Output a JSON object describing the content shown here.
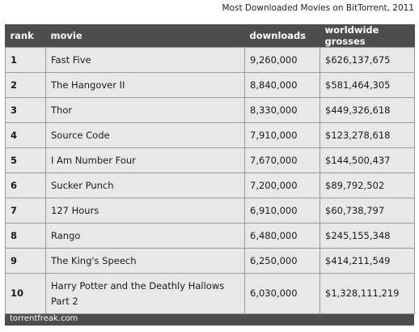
{
  "chart_data": {
    "type": "table",
    "title": "Most Downloaded Movies on BitTorrent, 2011",
    "columns": [
      "rank",
      "movie",
      "downloads",
      "worldwide grosses"
    ],
    "rows": [
      {
        "rank": "1",
        "movie": "Fast Five",
        "downloads": "9,260,000",
        "grosses": "$626,137,675"
      },
      {
        "rank": "2",
        "movie": "The Hangover II",
        "downloads": "8,840,000",
        "grosses": "$581,464,305"
      },
      {
        "rank": "3",
        "movie": "Thor",
        "downloads": "8,330,000",
        "grosses": "$449,326,618"
      },
      {
        "rank": "4",
        "movie": "Source Code",
        "downloads": "7,910,000",
        "grosses": "$123,278,618"
      },
      {
        "rank": "5",
        "movie": "I Am Number Four",
        "downloads": "7,670,000",
        "grosses": "$144,500,437"
      },
      {
        "rank": "6",
        "movie": "Sucker Punch",
        "downloads": "7,200,000",
        "grosses": "$89,792,502"
      },
      {
        "rank": "7",
        "movie": "127 Hours",
        "downloads": "6,910,000",
        "grosses": "$60,738,797"
      },
      {
        "rank": "8",
        "movie": "Rango",
        "downloads": "6,480,000",
        "grosses": "$245,155,348"
      },
      {
        "rank": "9",
        "movie": "The King's Speech",
        "downloads": "6,250,000",
        "grosses": "$414,211,549"
      },
      {
        "rank": "10",
        "movie": "Harry Potter and the Deathly Hallows Part 2",
        "downloads": "6,030,000",
        "grosses": "$1,328,111,219"
      }
    ],
    "source": "torrentfreak.com"
  },
  "colors": {
    "header_bg": "#4d4d4d",
    "cell_bg": "#e8e8e8",
    "grid": "#9a9a9a"
  }
}
